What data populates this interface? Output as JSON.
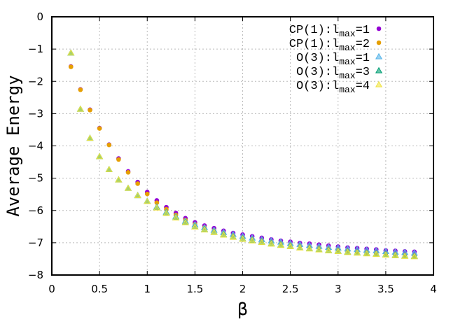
{
  "chart_data": {
    "type": "scatter",
    "title": "",
    "xlabel": "β",
    "ylabel": "Average Energy",
    "xlim": [
      0,
      4
    ],
    "ylim": [
      -8,
      0
    ],
    "xticks": [
      "0",
      "0.5",
      "1",
      "1.5",
      "2",
      "2.5",
      "3",
      "3.5",
      "4"
    ],
    "yticks": [
      "0",
      "−1",
      "−2",
      "−3",
      "−4",
      "−5",
      "−6",
      "−7",
      "−8"
    ],
    "grid": true,
    "legend_position": "top-right",
    "x": [
      0.2,
      0.3,
      0.4,
      0.5,
      0.6,
      0.7,
      0.8,
      0.9,
      1.0,
      1.1,
      1.2,
      1.3,
      1.4,
      1.5,
      1.6,
      1.7,
      1.8,
      1.9,
      2.0,
      2.1,
      2.2,
      2.3,
      2.4,
      2.5,
      2.6,
      2.7,
      2.8,
      2.9,
      3.0,
      3.1,
      3.2,
      3.3,
      3.4,
      3.5,
      3.6,
      3.7,
      3.8
    ],
    "series": [
      {
        "name_prefix": "CP(1):l",
        "name_sub": "max",
        "name_suffix": "=1",
        "marker": "circle",
        "color": "#9400d3",
        "values": [
          -1.54,
          -2.25,
          -2.88,
          -3.45,
          -3.96,
          -4.39,
          -4.79,
          -5.12,
          -5.43,
          -5.69,
          -5.9,
          -6.08,
          -6.24,
          -6.37,
          -6.47,
          -6.55,
          -6.63,
          -6.7,
          -6.75,
          -6.8,
          -6.85,
          -6.9,
          -6.94,
          -6.97,
          -7.01,
          -7.03,
          -7.06,
          -7.09,
          -7.12,
          -7.15,
          -7.17,
          -7.19,
          -7.21,
          -7.24,
          -7.25,
          -7.27,
          -7.28
        ]
      },
      {
        "name_prefix": "CP(1):l",
        "name_sub": "max",
        "name_suffix": "=2",
        "marker": "circle",
        "color": "#e69f00",
        "values": [
          -1.55,
          -2.26,
          -2.89,
          -3.46,
          -3.97,
          -4.42,
          -4.82,
          -5.17,
          -5.49,
          -5.76,
          -5.96,
          -6.14,
          -6.3,
          -6.43,
          -6.53,
          -6.62,
          -6.7,
          -6.77,
          -6.83,
          -6.88,
          -6.93,
          -6.98,
          -7.02,
          -7.06,
          -7.1,
          -7.13,
          -7.16,
          -7.19,
          -7.22,
          -7.25,
          -7.28,
          -7.3,
          -7.32,
          -7.34,
          -7.36,
          -7.38,
          -7.4
        ]
      },
      {
        "name_prefix": "O(3):l",
        "name_sub": "max",
        "name_suffix": "=1",
        "marker": "triangle",
        "color": "#56b4e9",
        "values": [
          -1.12,
          -2.86,
          -3.76,
          -4.33,
          -4.73,
          -5.05,
          -5.31,
          -5.53,
          -5.71,
          -5.89,
          -6.05,
          -6.19,
          -6.33,
          -6.44,
          -6.53,
          -6.61,
          -6.68,
          -6.74,
          -6.8,
          -6.85,
          -6.9,
          -6.94,
          -6.98,
          -7.02,
          -7.05,
          -7.08,
          -7.11,
          -7.14,
          -7.16,
          -7.19,
          -7.21,
          -7.23,
          -7.25,
          -7.27,
          -7.29,
          -7.3,
          -7.32
        ]
      },
      {
        "name_prefix": "O(3):l",
        "name_sub": "max",
        "name_suffix": "=3",
        "marker": "triangle",
        "color": "#009e73",
        "values": [
          -1.12,
          -2.86,
          -3.76,
          -4.33,
          -4.73,
          -5.05,
          -5.31,
          -5.54,
          -5.72,
          -5.91,
          -6.08,
          -6.22,
          -6.37,
          -6.5,
          -6.59,
          -6.67,
          -6.75,
          -6.82,
          -6.88,
          -6.93,
          -6.98,
          -7.03,
          -7.07,
          -7.11,
          -7.15,
          -7.18,
          -7.21,
          -7.24,
          -7.26,
          -7.29,
          -7.31,
          -7.33,
          -7.35,
          -7.37,
          -7.39,
          -7.41,
          -7.42
        ]
      },
      {
        "name_prefix": "O(3):l",
        "name_sub": "max",
        "name_suffix": "=4",
        "marker": "triangle",
        "color": "#f0e442",
        "values": [
          -1.12,
          -2.86,
          -3.76,
          -4.33,
          -4.73,
          -5.05,
          -5.31,
          -5.54,
          -5.72,
          -5.92,
          -6.09,
          -6.23,
          -6.38,
          -6.51,
          -6.6,
          -6.68,
          -6.76,
          -6.83,
          -6.89,
          -6.94,
          -6.99,
          -7.04,
          -7.08,
          -7.12,
          -7.16,
          -7.19,
          -7.22,
          -7.25,
          -7.27,
          -7.3,
          -7.32,
          -7.34,
          -7.36,
          -7.38,
          -7.4,
          -7.42,
          -7.43
        ]
      }
    ]
  }
}
